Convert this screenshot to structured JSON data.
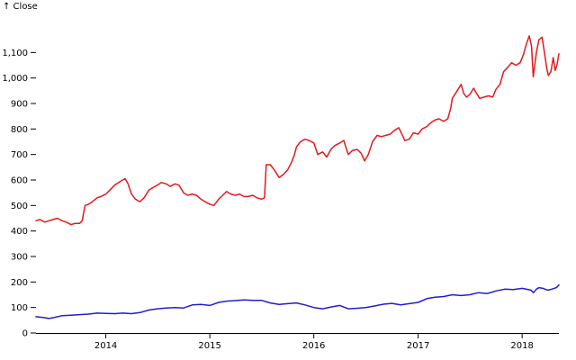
{
  "chart_data": {
    "type": "line",
    "ylabel": "↑ Close",
    "ylim": [
      0,
      1200
    ],
    "y_ticks": [
      0,
      100,
      200,
      300,
      400,
      500,
      600,
      700,
      800,
      900,
      1000,
      1100
    ],
    "y_tick_labels": [
      "0",
      "100",
      "200",
      "300",
      "400",
      "500",
      "600",
      "700",
      "800",
      "900",
      "1,000",
      "1,100"
    ],
    "xlim": [
      "2013-05-01",
      "2018-05-10"
    ],
    "x_ticks": [
      "2014-01-01",
      "2015-01-01",
      "2016-01-01",
      "2017-01-01",
      "2018-01-01"
    ],
    "x_tick_labels": [
      "2014",
      "2015",
      "2016",
      "2017",
      "2018"
    ],
    "grid": false,
    "series": [
      {
        "color": "#e41a1c",
        "points": [
          [
            "2013-05-01",
            440
          ],
          [
            "2013-05-15",
            445
          ],
          [
            "2013-06-01",
            435
          ],
          [
            "2013-06-15",
            440
          ],
          [
            "2013-07-01",
            445
          ],
          [
            "2013-07-15",
            450
          ],
          [
            "2013-08-01",
            440
          ],
          [
            "2013-08-15",
            435
          ],
          [
            "2013-09-01",
            425
          ],
          [
            "2013-09-15",
            430
          ],
          [
            "2013-10-01",
            430
          ],
          [
            "2013-10-10",
            440
          ],
          [
            "2013-10-20",
            500
          ],
          [
            "2013-11-01",
            505
          ],
          [
            "2013-11-15",
            515
          ],
          [
            "2013-12-01",
            530
          ],
          [
            "2013-12-15",
            535
          ],
          [
            "2014-01-01",
            545
          ],
          [
            "2014-01-15",
            560
          ],
          [
            "2014-02-01",
            580
          ],
          [
            "2014-02-15",
            590
          ],
          [
            "2014-03-01",
            600
          ],
          [
            "2014-03-10",
            605
          ],
          [
            "2014-03-20",
            585
          ],
          [
            "2014-04-01",
            545
          ],
          [
            "2014-04-15",
            525
          ],
          [
            "2014-05-01",
            515
          ],
          [
            "2014-05-15",
            530
          ],
          [
            "2014-06-01",
            560
          ],
          [
            "2014-06-15",
            570
          ],
          [
            "2014-07-01",
            580
          ],
          [
            "2014-07-15",
            590
          ],
          [
            "2014-08-01",
            585
          ],
          [
            "2014-08-15",
            575
          ],
          [
            "2014-09-01",
            585
          ],
          [
            "2014-09-15",
            580
          ],
          [
            "2014-10-01",
            550
          ],
          [
            "2014-10-15",
            540
          ],
          [
            "2014-11-01",
            545
          ],
          [
            "2014-11-15",
            540
          ],
          [
            "2014-12-01",
            525
          ],
          [
            "2014-12-15",
            515
          ],
          [
            "2015-01-01",
            505
          ],
          [
            "2015-01-15",
            500
          ],
          [
            "2015-02-01",
            525
          ],
          [
            "2015-02-15",
            540
          ],
          [
            "2015-03-01",
            555
          ],
          [
            "2015-03-15",
            545
          ],
          [
            "2015-04-01",
            540
          ],
          [
            "2015-04-15",
            545
          ],
          [
            "2015-05-01",
            535
          ],
          [
            "2015-05-15",
            535
          ],
          [
            "2015-06-01",
            540
          ],
          [
            "2015-06-15",
            530
          ],
          [
            "2015-07-01",
            525
          ],
          [
            "2015-07-12",
            530
          ],
          [
            "2015-07-18",
            660
          ],
          [
            "2015-08-01",
            660
          ],
          [
            "2015-08-15",
            640
          ],
          [
            "2015-09-01",
            610
          ],
          [
            "2015-09-15",
            620
          ],
          [
            "2015-10-01",
            640
          ],
          [
            "2015-10-15",
            670
          ],
          [
            "2015-10-25",
            700
          ],
          [
            "2015-11-01",
            730
          ],
          [
            "2015-11-15",
            750
          ],
          [
            "2015-12-01",
            760
          ],
          [
            "2015-12-15",
            755
          ],
          [
            "2016-01-01",
            745
          ],
          [
            "2016-01-15",
            700
          ],
          [
            "2016-02-01",
            710
          ],
          [
            "2016-02-15",
            690
          ],
          [
            "2016-03-01",
            720
          ],
          [
            "2016-03-15",
            735
          ],
          [
            "2016-04-01",
            745
          ],
          [
            "2016-04-15",
            755
          ],
          [
            "2016-04-25",
            720
          ],
          [
            "2016-05-01",
            700
          ],
          [
            "2016-05-15",
            715
          ],
          [
            "2016-06-01",
            720
          ],
          [
            "2016-06-15",
            705
          ],
          [
            "2016-06-27",
            675
          ],
          [
            "2016-07-10",
            700
          ],
          [
            "2016-07-25",
            750
          ],
          [
            "2016-08-10",
            775
          ],
          [
            "2016-08-25",
            770
          ],
          [
            "2016-09-10",
            775
          ],
          [
            "2016-09-25",
            780
          ],
          [
            "2016-10-10",
            795
          ],
          [
            "2016-10-25",
            805
          ],
          [
            "2016-11-05",
            780
          ],
          [
            "2016-11-15",
            755
          ],
          [
            "2016-12-01",
            760
          ],
          [
            "2016-12-15",
            785
          ],
          [
            "2017-01-01",
            780
          ],
          [
            "2017-01-15",
            800
          ],
          [
            "2017-02-01",
            810
          ],
          [
            "2017-02-15",
            825
          ],
          [
            "2017-03-01",
            835
          ],
          [
            "2017-03-15",
            840
          ],
          [
            "2017-04-01",
            830
          ],
          [
            "2017-04-15",
            840
          ],
          [
            "2017-04-25",
            880
          ],
          [
            "2017-05-01",
            920
          ],
          [
            "2017-05-15",
            945
          ],
          [
            "2017-06-01",
            975
          ],
          [
            "2017-06-10",
            940
          ],
          [
            "2017-06-20",
            925
          ],
          [
            "2017-07-01",
            935
          ],
          [
            "2017-07-15",
            960
          ],
          [
            "2017-07-25",
            940
          ],
          [
            "2017-08-05",
            920
          ],
          [
            "2017-08-20",
            925
          ],
          [
            "2017-09-05",
            930
          ],
          [
            "2017-09-20",
            925
          ],
          [
            "2017-10-01",
            955
          ],
          [
            "2017-10-15",
            975
          ],
          [
            "2017-10-28",
            1025
          ],
          [
            "2017-11-10",
            1040
          ],
          [
            "2017-11-25",
            1060
          ],
          [
            "2017-12-10",
            1050
          ],
          [
            "2017-12-25",
            1060
          ],
          [
            "2018-01-05",
            1090
          ],
          [
            "2018-01-15",
            1130
          ],
          [
            "2018-01-26",
            1165
          ],
          [
            "2018-02-03",
            1125
          ],
          [
            "2018-02-09",
            1005
          ],
          [
            "2018-02-20",
            1100
          ],
          [
            "2018-03-01",
            1150
          ],
          [
            "2018-03-12",
            1160
          ],
          [
            "2018-03-20",
            1100
          ],
          [
            "2018-03-28",
            1040
          ],
          [
            "2018-04-03",
            1010
          ],
          [
            "2018-04-12",
            1025
          ],
          [
            "2018-04-20",
            1080
          ],
          [
            "2018-04-27",
            1030
          ],
          [
            "2018-05-03",
            1050
          ],
          [
            "2018-05-10",
            1095
          ]
        ]
      },
      {
        "color": "#1f1fcc",
        "points": [
          [
            "2013-05-01",
            64
          ],
          [
            "2013-06-01",
            60
          ],
          [
            "2013-06-15",
            57
          ],
          [
            "2013-07-01",
            60
          ],
          [
            "2013-08-01",
            68
          ],
          [
            "2013-09-01",
            70
          ],
          [
            "2013-10-01",
            72
          ],
          [
            "2013-11-01",
            74
          ],
          [
            "2013-12-01",
            78
          ],
          [
            "2014-01-01",
            77
          ],
          [
            "2014-02-01",
            76
          ],
          [
            "2014-03-01",
            78
          ],
          [
            "2014-04-01",
            76
          ],
          [
            "2014-05-01",
            80
          ],
          [
            "2014-06-01",
            90
          ],
          [
            "2014-07-01",
            95
          ],
          [
            "2014-08-01",
            98
          ],
          [
            "2014-09-01",
            100
          ],
          [
            "2014-10-01",
            98
          ],
          [
            "2014-11-01",
            110
          ],
          [
            "2014-12-01",
            112
          ],
          [
            "2015-01-01",
            108
          ],
          [
            "2015-02-01",
            120
          ],
          [
            "2015-03-01",
            125
          ],
          [
            "2015-04-01",
            127
          ],
          [
            "2015-05-01",
            130
          ],
          [
            "2015-06-01",
            128
          ],
          [
            "2015-07-01",
            128
          ],
          [
            "2015-08-01",
            118
          ],
          [
            "2015-09-01",
            112
          ],
          [
            "2015-10-01",
            115
          ],
          [
            "2015-11-01",
            118
          ],
          [
            "2015-12-01",
            110
          ],
          [
            "2016-01-01",
            100
          ],
          [
            "2016-02-01",
            95
          ],
          [
            "2016-03-01",
            102
          ],
          [
            "2016-04-01",
            108
          ],
          [
            "2016-05-01",
            95
          ],
          [
            "2016-06-01",
            97
          ],
          [
            "2016-07-01",
            100
          ],
          [
            "2016-08-01",
            106
          ],
          [
            "2016-09-01",
            113
          ],
          [
            "2016-10-01",
            116
          ],
          [
            "2016-11-01",
            110
          ],
          [
            "2016-12-01",
            115
          ],
          [
            "2017-01-01",
            120
          ],
          [
            "2017-02-01",
            135
          ],
          [
            "2017-03-01",
            140
          ],
          [
            "2017-04-01",
            143
          ],
          [
            "2017-05-01",
            150
          ],
          [
            "2017-06-01",
            147
          ],
          [
            "2017-07-01",
            150
          ],
          [
            "2017-08-01",
            158
          ],
          [
            "2017-09-01",
            155
          ],
          [
            "2017-10-01",
            165
          ],
          [
            "2017-11-01",
            172
          ],
          [
            "2017-12-01",
            170
          ],
          [
            "2018-01-01",
            175
          ],
          [
            "2018-02-01",
            168
          ],
          [
            "2018-02-10",
            158
          ],
          [
            "2018-02-20",
            172
          ],
          [
            "2018-03-01",
            178
          ],
          [
            "2018-03-15",
            175
          ],
          [
            "2018-04-01",
            168
          ],
          [
            "2018-04-15",
            172
          ],
          [
            "2018-05-01",
            178
          ],
          [
            "2018-05-10",
            188
          ]
        ]
      }
    ]
  }
}
